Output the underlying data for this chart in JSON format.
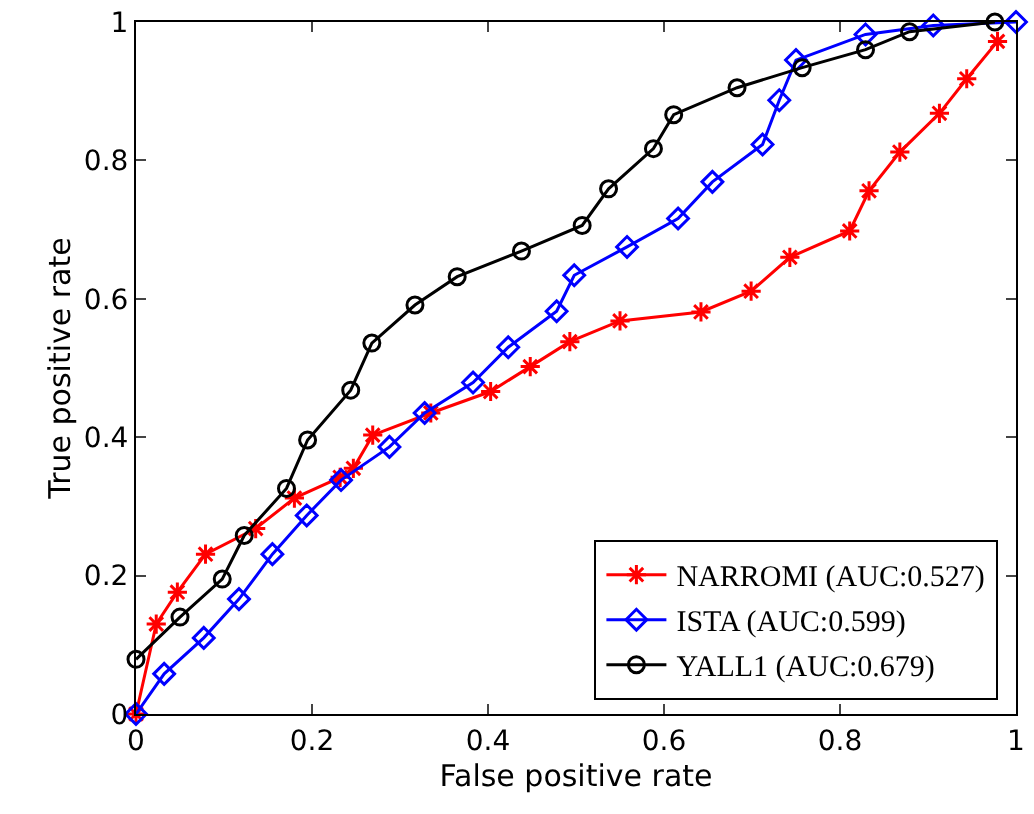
{
  "chart_data": {
    "type": "line",
    "xlabel": "False positive rate",
    "ylabel": "True positive rate",
    "xlim": [
      0,
      1
    ],
    "ylim": [
      0,
      1
    ],
    "xticks": [
      0,
      0.2,
      0.4,
      0.6,
      0.8,
      1
    ],
    "yticks": [
      0,
      0.2,
      0.4,
      0.6,
      0.8,
      1
    ],
    "grid": false,
    "legend": "bottom right",
    "line_style": "solid",
    "series": [
      {
        "name": "NARROMI (AUC:0.527)",
        "color": "#ff0000",
        "marker": "cross",
        "x": [
          0,
          0.023,
          0.047,
          0.079,
          0.136,
          0.18,
          0.232,
          0.247,
          0.269,
          0.335,
          0.403,
          0.448,
          0.493,
          0.55,
          0.642,
          0.699,
          0.743,
          0.811,
          0.833,
          0.868,
          0.913,
          0.944,
          0.979
        ],
        "values": [
          0,
          0.13,
          0.176,
          0.231,
          0.268,
          0.312,
          0.342,
          0.355,
          0.403,
          0.435,
          0.466,
          0.502,
          0.538,
          0.568,
          0.581,
          0.611,
          0.66,
          0.698,
          0.756,
          0.812,
          0.868,
          0.918,
          0.972
        ]
      },
      {
        "name": "ISTA (AUC:0.599)",
        "color": "#0000ff",
        "marker": "diamond",
        "x": [
          0,
          0.032,
          0.077,
          0.117,
          0.155,
          0.194,
          0.233,
          0.288,
          0.328,
          0.383,
          0.423,
          0.478,
          0.498,
          0.558,
          0.616,
          0.655,
          0.712,
          0.731,
          0.75,
          0.829,
          0.906,
          1
        ],
        "values": [
          0,
          0.058,
          0.11,
          0.166,
          0.231,
          0.287,
          0.338,
          0.386,
          0.435,
          0.479,
          0.53,
          0.582,
          0.634,
          0.675,
          0.716,
          0.769,
          0.823,
          0.887,
          0.945,
          0.982,
          0.995,
          1
        ]
      },
      {
        "name": "YALL1 (AUC:0.679)",
        "color": "#000000",
        "marker": "circle",
        "x": [
          0,
          0.05,
          0.098,
          0.123,
          0.171,
          0.195,
          0.244,
          0.268,
          0.317,
          0.365,
          0.438,
          0.507,
          0.537,
          0.588,
          0.611,
          0.683,
          0.757,
          0.829,
          0.879,
          0.976
        ],
        "values": [
          0.079,
          0.14,
          0.195,
          0.258,
          0.326,
          0.396,
          0.468,
          0.536,
          0.591,
          0.632,
          0.669,
          0.706,
          0.759,
          0.817,
          0.866,
          0.905,
          0.934,
          0.96,
          0.986,
          1
        ]
      }
    ]
  }
}
